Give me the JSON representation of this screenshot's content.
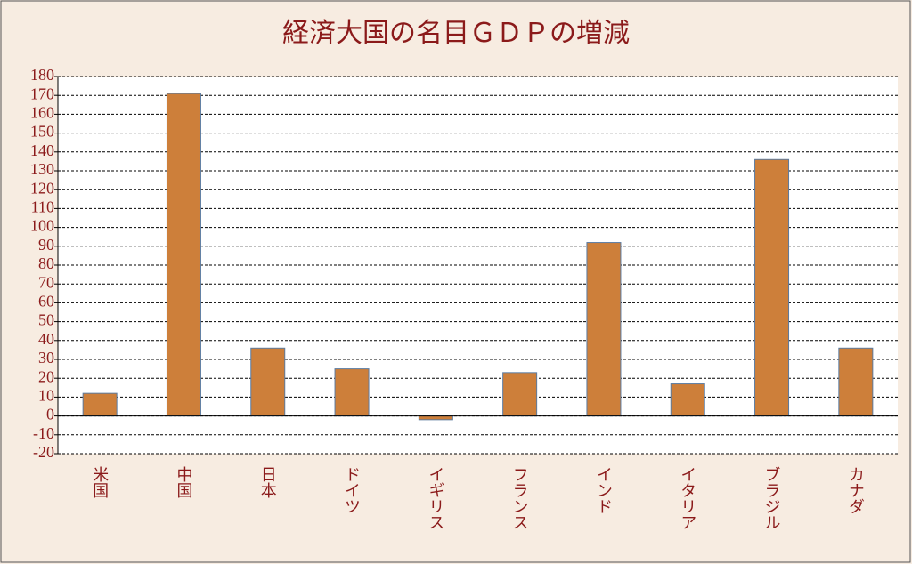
{
  "chart_data": {
    "type": "bar",
    "title": "経済大国の名目ＧＤＰの増減",
    "categories": [
      "米国",
      "中国",
      "日本",
      "ドイツ",
      "イギリス",
      "フランス",
      "インド",
      "イタリア",
      "ブラジル",
      "カナダ"
    ],
    "values": [
      12,
      171,
      36,
      25,
      -2,
      23,
      92,
      17,
      136,
      36
    ],
    "color": "#cd7f3a",
    "ylim": [
      -20,
      180
    ],
    "yticks": [
      -20,
      -10,
      0,
      10,
      20,
      30,
      40,
      50,
      60,
      70,
      80,
      90,
      100,
      110,
      120,
      130,
      140,
      150,
      160,
      170,
      180
    ],
    "grid": true
  }
}
